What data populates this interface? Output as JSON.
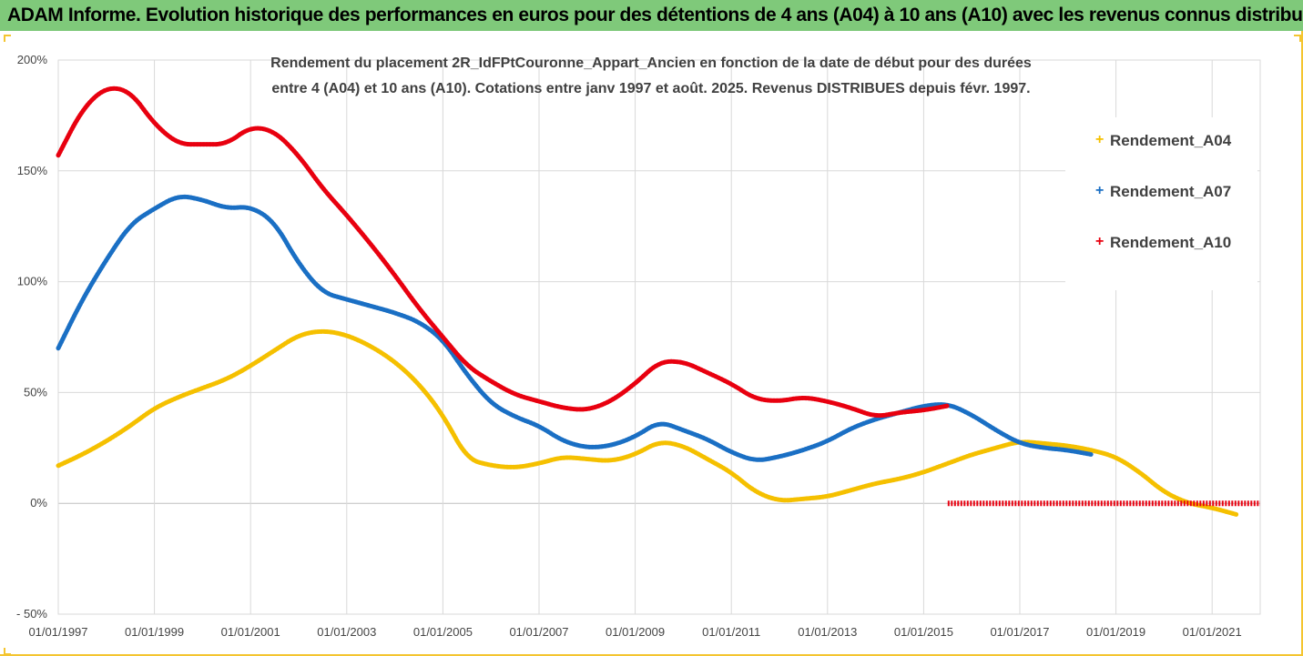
{
  "header": {
    "title": "ADAM Informe. Evolution historique des performances en euros pour des détentions de 4 ans (A04) à 10 ans (A10) avec les revenus connus distribués"
  },
  "colors": {
    "header_bg": "#7fc97a",
    "A04": "#f5c000",
    "A07": "#1a6fc4",
    "A10": "#e8000f",
    "gridline": "#d9d9d9"
  },
  "chart_data": {
    "type": "line",
    "subtitle_lines": [
      "Rendement du placement 2R_IdFPtCouronne_Appart_Ancien en fonction de la date de début pour des durées",
      "entre 4 (A04) et 10 ans (A10). Cotations entre janv 1997 et août. 2025. Revenus DISTRIBUES depuis févr. 1997."
    ],
    "x_ticks": [
      "01/01/1997",
      "01/01/1999",
      "01/01/2001",
      "01/01/2003",
      "01/01/2005",
      "01/01/2007",
      "01/01/2009",
      "01/01/2011",
      "01/01/2013",
      "01/01/2015",
      "01/01/2017",
      "01/01/2019",
      "01/01/2021"
    ],
    "y_ticks": [
      "200%",
      "150%",
      "100%",
      "50%",
      "0%",
      "- 50%"
    ],
    "xlim": [
      "1997-01-01",
      "2022-01-01"
    ],
    "ylim": [
      -50,
      200
    ],
    "y_unit": "%",
    "grid": true,
    "legend_position": "right",
    "series": [
      {
        "name": "Rendement_A04",
        "color_key": "A04",
        "points": [
          [
            "1997-01",
            17
          ],
          [
            "1997-07",
            22
          ],
          [
            "1998-01",
            28
          ],
          [
            "1998-07",
            35
          ],
          [
            "1999-01",
            43
          ],
          [
            "1999-07",
            48
          ],
          [
            "2000-01",
            52
          ],
          [
            "2000-07",
            56
          ],
          [
            "2001-01",
            62
          ],
          [
            "2001-07",
            69
          ],
          [
            "2002-01",
            76
          ],
          [
            "2002-07",
            78
          ],
          [
            "2003-01",
            76
          ],
          [
            "2003-07",
            71
          ],
          [
            "2004-01",
            64
          ],
          [
            "2004-07",
            54
          ],
          [
            "2005-01",
            40
          ],
          [
            "2005-07",
            20
          ],
          [
            "2006-01",
            17
          ],
          [
            "2006-07",
            16
          ],
          [
            "2007-01",
            18
          ],
          [
            "2007-07",
            21
          ],
          [
            "2008-01",
            20
          ],
          [
            "2008-07",
            19
          ],
          [
            "2009-01",
            22
          ],
          [
            "2009-07",
            28
          ],
          [
            "2010-01",
            26
          ],
          [
            "2010-07",
            20
          ],
          [
            "2011-01",
            14
          ],
          [
            "2011-07",
            5
          ],
          [
            "2012-01",
            1
          ],
          [
            "2012-07",
            2
          ],
          [
            "2013-01",
            3
          ],
          [
            "2013-07",
            6
          ],
          [
            "2014-01",
            9
          ],
          [
            "2014-07",
            11
          ],
          [
            "2015-01",
            14
          ],
          [
            "2015-07",
            18
          ],
          [
            "2016-01",
            22
          ],
          [
            "2016-07",
            25
          ],
          [
            "2017-01",
            28
          ],
          [
            "2017-07",
            27
          ],
          [
            "2018-01",
            26
          ],
          [
            "2018-07",
            24
          ],
          [
            "2019-01",
            21
          ],
          [
            "2019-07",
            14
          ],
          [
            "2020-01",
            5
          ],
          [
            "2020-07",
            0
          ],
          [
            "2021-01",
            -2
          ],
          [
            "2021-07",
            -5
          ]
        ]
      },
      {
        "name": "Rendement_A07",
        "color_key": "A07",
        "points": [
          [
            "1997-01",
            70
          ],
          [
            "1997-07",
            92
          ],
          [
            "1998-01",
            110
          ],
          [
            "1998-07",
            126
          ],
          [
            "1999-01",
            133
          ],
          [
            "1999-07",
            139
          ],
          [
            "2000-01",
            137
          ],
          [
            "2000-07",
            133
          ],
          [
            "2001-01",
            134
          ],
          [
            "2001-07",
            127
          ],
          [
            "2002-01",
            108
          ],
          [
            "2002-07",
            95
          ],
          [
            "2003-01",
            92
          ],
          [
            "2003-07",
            89
          ],
          [
            "2004-01",
            86
          ],
          [
            "2004-07",
            82
          ],
          [
            "2005-01",
            74
          ],
          [
            "2005-07",
            58
          ],
          [
            "2006-01",
            45
          ],
          [
            "2006-07",
            39
          ],
          [
            "2007-01",
            35
          ],
          [
            "2007-07",
            28
          ],
          [
            "2008-01",
            25
          ],
          [
            "2008-07",
            26
          ],
          [
            "2009-01",
            30
          ],
          [
            "2009-07",
            37
          ],
          [
            "2010-01",
            33
          ],
          [
            "2010-07",
            29
          ],
          [
            "2011-01",
            23
          ],
          [
            "2011-07",
            19
          ],
          [
            "2012-01",
            21
          ],
          [
            "2012-07",
            24
          ],
          [
            "2013-01",
            28
          ],
          [
            "2013-07",
            34
          ],
          [
            "2014-01",
            38
          ],
          [
            "2014-07",
            41
          ],
          [
            "2015-01",
            44
          ],
          [
            "2015-07",
            45
          ],
          [
            "2016-01",
            40
          ],
          [
            "2016-07",
            33
          ],
          [
            "2017-01",
            27
          ],
          [
            "2017-07",
            25
          ],
          [
            "2018-01",
            24
          ],
          [
            "2018-07",
            22
          ]
        ]
      },
      {
        "name": "Rendement_A10",
        "color_key": "A10",
        "points": [
          [
            "1997-01",
            157
          ],
          [
            "1997-07",
            178
          ],
          [
            "1998-01",
            188
          ],
          [
            "1998-07",
            186
          ],
          [
            "1999-01",
            171
          ],
          [
            "1999-07",
            162
          ],
          [
            "2000-01",
            162
          ],
          [
            "2000-07",
            162
          ],
          [
            "2001-01",
            170
          ],
          [
            "2001-07",
            168
          ],
          [
            "2002-01",
            157
          ],
          [
            "2002-07",
            142
          ],
          [
            "2003-01",
            130
          ],
          [
            "2003-07",
            117
          ],
          [
            "2004-01",
            103
          ],
          [
            "2004-07",
            88
          ],
          [
            "2005-01",
            75
          ],
          [
            "2005-07",
            62
          ],
          [
            "2006-01",
            55
          ],
          [
            "2006-07",
            49
          ],
          [
            "2007-01",
            46
          ],
          [
            "2007-07",
            43
          ],
          [
            "2008-01",
            42
          ],
          [
            "2008-07",
            46
          ],
          [
            "2009-01",
            54
          ],
          [
            "2009-07",
            64
          ],
          [
            "2010-01",
            64
          ],
          [
            "2010-07",
            59
          ],
          [
            "2011-01",
            54
          ],
          [
            "2011-07",
            47
          ],
          [
            "2012-01",
            46
          ],
          [
            "2012-07",
            48
          ],
          [
            "2013-01",
            46
          ],
          [
            "2013-07",
            43
          ],
          [
            "2014-01",
            39
          ],
          [
            "2014-07",
            41
          ],
          [
            "2015-01",
            42
          ],
          [
            "2015-07",
            44
          ]
        ],
        "flat_segment": {
          "from": "2015-07",
          "to": "2022-01",
          "value": 0
        }
      }
    ]
  }
}
